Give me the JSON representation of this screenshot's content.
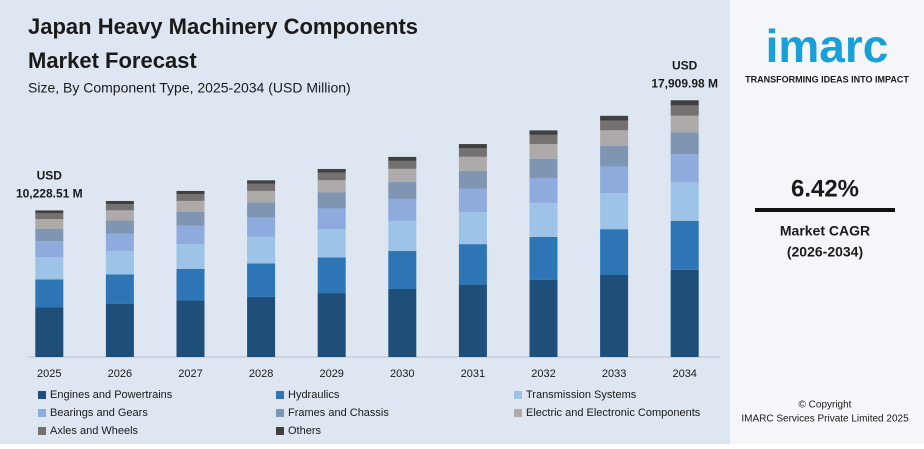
{
  "chart_data": {
    "type": "stacked_bar",
    "title": "Japan Heavy Machinery Components",
    "title_line2": "Market Forecast",
    "subtitle": "Size, By Component Type, 2025-2034 (USD Million)",
    "categories": [
      "2025",
      "2026",
      "2027",
      "2028",
      "2029",
      "2030",
      "2031",
      "2032",
      "2033",
      "2034"
    ],
    "series": [
      {
        "name": "Engines and Powertrains",
        "color": "#1f4e79",
        "values": [
          3478,
          3701,
          3939,
          4191,
          4460,
          4747,
          5051,
          5376,
          5721,
          6089
        ]
      },
      {
        "name": "Hydraulics",
        "color": "#2e75b6",
        "values": [
          1943,
          2068,
          2201,
          2342,
          2493,
          2653,
          2823,
          3004,
          3197,
          3403
        ]
      },
      {
        "name": "Transmission Systems",
        "color": "#9dc3e6",
        "values": [
          1534,
          1633,
          1738,
          1849,
          1968,
          2094,
          2229,
          2372,
          2524,
          2687
        ]
      },
      {
        "name": "Bearings and Gears",
        "color": "#8faadc",
        "values": [
          1125,
          1197,
          1274,
          1356,
          1443,
          1536,
          1634,
          1739,
          1851,
          1970
        ]
      },
      {
        "name": "Frames and Chassis",
        "color": "#7f96b2",
        "values": [
          869,
          925,
          985,
          1048,
          1115,
          1187,
          1263,
          1344,
          1430,
          1522
        ]
      },
      {
        "name": "Electric and Electronic Components",
        "color": "#aeaaaa",
        "values": [
          665,
          708,
          753,
          801,
          853,
          907,
          966,
          1028,
          1094,
          1164
        ]
      },
      {
        "name": "Axles and Wheels",
        "color": "#767171",
        "values": [
          409,
          435,
          463,
          493,
          525,
          558,
          594,
          632,
          673,
          716
        ]
      },
      {
        "name": "Others",
        "color": "#404040",
        "values": [
          205,
          218,
          231,
          247,
          262,
          279,
          297,
          316,
          336,
          359
        ]
      }
    ],
    "ylim": [
      0,
      18000
    ],
    "annotations": [
      {
        "category": 0,
        "unit": "USD",
        "text": "10,228.51 M"
      },
      {
        "category": 9,
        "unit": "USD",
        "text": "17,909.98 M"
      }
    ]
  },
  "sidebar": {
    "logo": "imarc",
    "tagline": "TRANSFORMING IDEAS INTO IMPACT",
    "cagr": "6.42%",
    "cagr_label": "Market CAGR",
    "cagr_period": "(2026-2034)",
    "copyright": "© Copyright",
    "company": "IMARC Services Private Limited 2025"
  }
}
